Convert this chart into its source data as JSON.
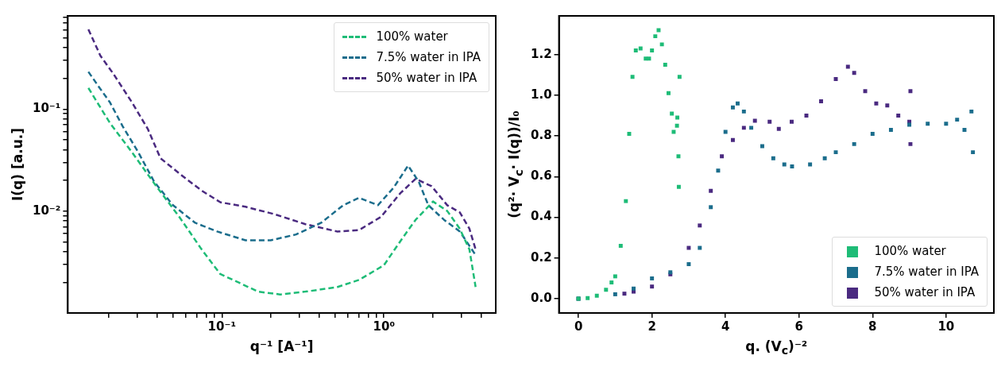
{
  "chart_data": [
    {
      "type": "line",
      "xlabel": "q⁻¹ [A⁻¹]",
      "ylabel": "I(q) [a.u.]",
      "log": "xy",
      "xlim": [
        0.0112,
        4.9
      ],
      "ylim": [
        0.001,
        0.82
      ],
      "xticks": [
        {
          "value": 0.02,
          "label": null
        },
        {
          "value": 0.03,
          "label": null
        },
        {
          "value": 0.04,
          "label": null
        },
        {
          "value": 0.05,
          "label": null
        },
        {
          "value": 0.06,
          "label": null
        },
        {
          "value": 0.07,
          "label": null
        },
        {
          "value": 0.08,
          "label": null
        },
        {
          "value": 0.09,
          "label": null
        },
        {
          "value": 0.1,
          "label": "10⁻¹"
        },
        {
          "value": 0.2,
          "label": null
        },
        {
          "value": 0.3,
          "label": null
        },
        {
          "value": 0.4,
          "label": null
        },
        {
          "value": 0.5,
          "label": null
        },
        {
          "value": 0.6,
          "label": null
        },
        {
          "value": 0.7,
          "label": null
        },
        {
          "value": 0.8,
          "label": null
        },
        {
          "value": 0.9,
          "label": null
        },
        {
          "value": 1,
          "label": "10⁰"
        },
        {
          "value": 2,
          "label": null
        },
        {
          "value": 3,
          "label": null
        },
        {
          "value": 4,
          "label": null
        }
      ],
      "yticks": [
        {
          "value": 0.002,
          "label": null
        },
        {
          "value": 0.003,
          "label": null
        },
        {
          "value": 0.004,
          "label": null
        },
        {
          "value": 0.005,
          "label": null
        },
        {
          "value": 0.006,
          "label": null
        },
        {
          "value": 0.007,
          "label": null
        },
        {
          "value": 0.008,
          "label": null
        },
        {
          "value": 0.009,
          "label": null
        },
        {
          "value": 0.01,
          "label": "10⁻²"
        },
        {
          "value": 0.02,
          "label": null
        },
        {
          "value": 0.03,
          "label": null
        },
        {
          "value": 0.04,
          "label": null
        },
        {
          "value": 0.05,
          "label": null
        },
        {
          "value": 0.06,
          "label": null
        },
        {
          "value": 0.07,
          "label": null
        },
        {
          "value": 0.08,
          "label": null
        },
        {
          "value": 0.09,
          "label": null
        },
        {
          "value": 0.1,
          "label": "10⁻¹"
        },
        {
          "value": 0.2,
          "label": null
        },
        {
          "value": 0.3,
          "label": null
        },
        {
          "value": 0.4,
          "label": null
        },
        {
          "value": 0.5,
          "label": null
        },
        {
          "value": 0.6,
          "label": null
        },
        {
          "value": 0.7,
          "label": null
        },
        {
          "value": 0.8,
          "label": null
        }
      ],
      "grid": false,
      "legend": "top right",
      "line_style": "dashed",
      "marker": "none",
      "series": [
        {
          "name": "100% water",
          "color": "#1ebc77",
          "x": [
            0.015,
            0.0204,
            0.0279,
            0.0399,
            0.0546,
            0.0748,
            0.0977,
            0.128,
            0.167,
            0.229,
            0.328,
            0.513,
            0.702,
            1.0,
            1.31,
            1.57,
            2.01,
            2.46,
            2.94,
            3.37,
            3.68
          ],
          "values": [
            0.161,
            0.0728,
            0.0376,
            0.017,
            0.00877,
            0.00423,
            0.00241,
            0.00198,
            0.00162,
            0.00152,
            0.00162,
            0.00179,
            0.00211,
            0.00294,
            0.0055,
            0.0082,
            0.0124,
            0.01,
            0.0067,
            0.0042,
            0.0018
          ]
        },
        {
          "name": "7.5% water in IPA",
          "color": "#1b6d8c",
          "x": [
            0.015,
            0.0171,
            0.0204,
            0.0244,
            0.0305,
            0.0382,
            0.0499,
            0.0684,
            0.0935,
            0.14,
            0.2,
            0.287,
            0.41,
            0.561,
            0.702,
            0.918,
            1.15,
            1.41,
            1.64,
            1.88,
            2.35,
            2.94,
            3.68
          ],
          "values": [
            0.232,
            0.172,
            0.116,
            0.068,
            0.0376,
            0.0194,
            0.0114,
            0.00767,
            0.0063,
            0.00516,
            0.00516,
            0.00589,
            0.00767,
            0.0114,
            0.0135,
            0.0114,
            0.017,
            0.0279,
            0.0194,
            0.0114,
            0.0082,
            0.0063,
            0.0037
          ]
        },
        {
          "name": "50% water in IPA",
          "color": "#4a2a80",
          "x": [
            0.015,
            0.0178,
            0.0213,
            0.0279,
            0.0349,
            0.0418,
            0.0571,
            0.0748,
            0.0977,
            0.14,
            0.209,
            0.328,
            0.513,
            0.702,
            0.96,
            1.26,
            1.57,
            1.97,
            2.46,
            2.94,
            3.37,
            3.68
          ],
          "values": [
            0.605,
            0.333,
            0.224,
            0.116,
            0.0638,
            0.0329,
            0.0221,
            0.0159,
            0.0122,
            0.011,
            0.00935,
            0.00743,
            0.0063,
            0.0065,
            0.00877,
            0.0149,
            0.0207,
            0.0175,
            0.0114,
            0.0097,
            0.0067,
            0.0042
          ]
        }
      ]
    },
    {
      "type": "scatter",
      "xlabel": "q. (V$_{c}$)⁻²",
      "ylabel": "(q²· V$_{c}$· I(q))/I₀",
      "xlim": [
        -0.53,
        11.3
      ],
      "ylim": [
        -0.07,
        1.39
      ],
      "xticks": [
        0,
        2,
        4,
        6,
        8,
        10
      ],
      "yticks": [
        {
          "value": 0,
          "label": "0.0"
        },
        {
          "value": 0.2,
          "label": "0.2"
        },
        {
          "value": 0.4,
          "label": "0.4"
        },
        {
          "value": 0.6,
          "label": "0.6"
        },
        {
          "value": 0.8,
          "label": "0.8"
        },
        {
          "value": 1,
          "label": "1.0"
        },
        {
          "value": 1.2,
          "label": "1.2"
        }
      ],
      "grid": false,
      "legend": "bottom right",
      "marker": "square",
      "series": [
        {
          "name": "100% water",
          "color": "#1ebc77",
          "x": [
            0,
            0.25,
            0.5,
            0.75,
            0.9,
            1.0,
            1.15,
            1.29,
            1.38,
            1.47,
            1.56,
            1.69,
            1.83,
            1.92,
            2.0,
            2.09,
            2.18,
            2.27,
            2.36,
            2.45,
            2.54,
            2.59,
            2.68,
            2.69,
            2.72,
            2.73,
            2.75
          ],
          "values": [
            0,
            0.003,
            0.015,
            0.044,
            0.08,
            0.11,
            0.26,
            0.48,
            0.81,
            1.09,
            1.22,
            1.23,
            1.18,
            1.18,
            1.22,
            1.29,
            1.32,
            1.25,
            1.15,
            1.01,
            0.91,
            0.82,
            0.85,
            0.89,
            0.7,
            0.55,
            1.09
          ]
        },
        {
          "name": "7.5% water in IPA",
          "color": "#1b6d8c",
          "x": [
            0,
            1,
            1.5,
            2,
            2.5,
            3,
            3.3,
            3.6,
            3.8,
            4.0,
            4.2,
            4.33,
            4.5,
            4.7,
            5.0,
            5.3,
            5.6,
            5.81,
            6.3,
            6.7,
            7.0,
            7.5,
            8.0,
            8.5,
            9.0,
            9.5,
            10.0,
            10.3,
            10.5,
            10.69,
            10.73
          ],
          "values": [
            0,
            0.022,
            0.05,
            0.1,
            0.13,
            0.17,
            0.25,
            0.45,
            0.63,
            0.82,
            0.94,
            0.96,
            0.92,
            0.84,
            0.75,
            0.69,
            0.66,
            0.65,
            0.66,
            0.69,
            0.72,
            0.76,
            0.81,
            0.83,
            0.855,
            0.86,
            0.86,
            0.88,
            0.83,
            0.92,
            0.72
          ]
        },
        {
          "name": "50% water in IPA",
          "color": "#4a2a80",
          "x": [
            0,
            1.25,
            1.5,
            2,
            2.5,
            3,
            3.3,
            3.6,
            3.9,
            4.2,
            4.5,
            4.8,
            5.2,
            5.45,
            5.8,
            6.2,
            6.6,
            7.0,
            7.33,
            7.5,
            7.8,
            8.1,
            8.4,
            8.7,
            9.0,
            9.03,
            9.03
          ],
          "values": [
            0,
            0.025,
            0.035,
            0.06,
            0.12,
            0.25,
            0.36,
            0.53,
            0.7,
            0.78,
            0.84,
            0.875,
            0.87,
            0.835,
            0.87,
            0.9,
            0.97,
            1.08,
            1.14,
            1.11,
            1.02,
            0.96,
            0.95,
            0.9,
            0.87,
            0.76,
            1.02
          ]
        }
      ]
    }
  ]
}
